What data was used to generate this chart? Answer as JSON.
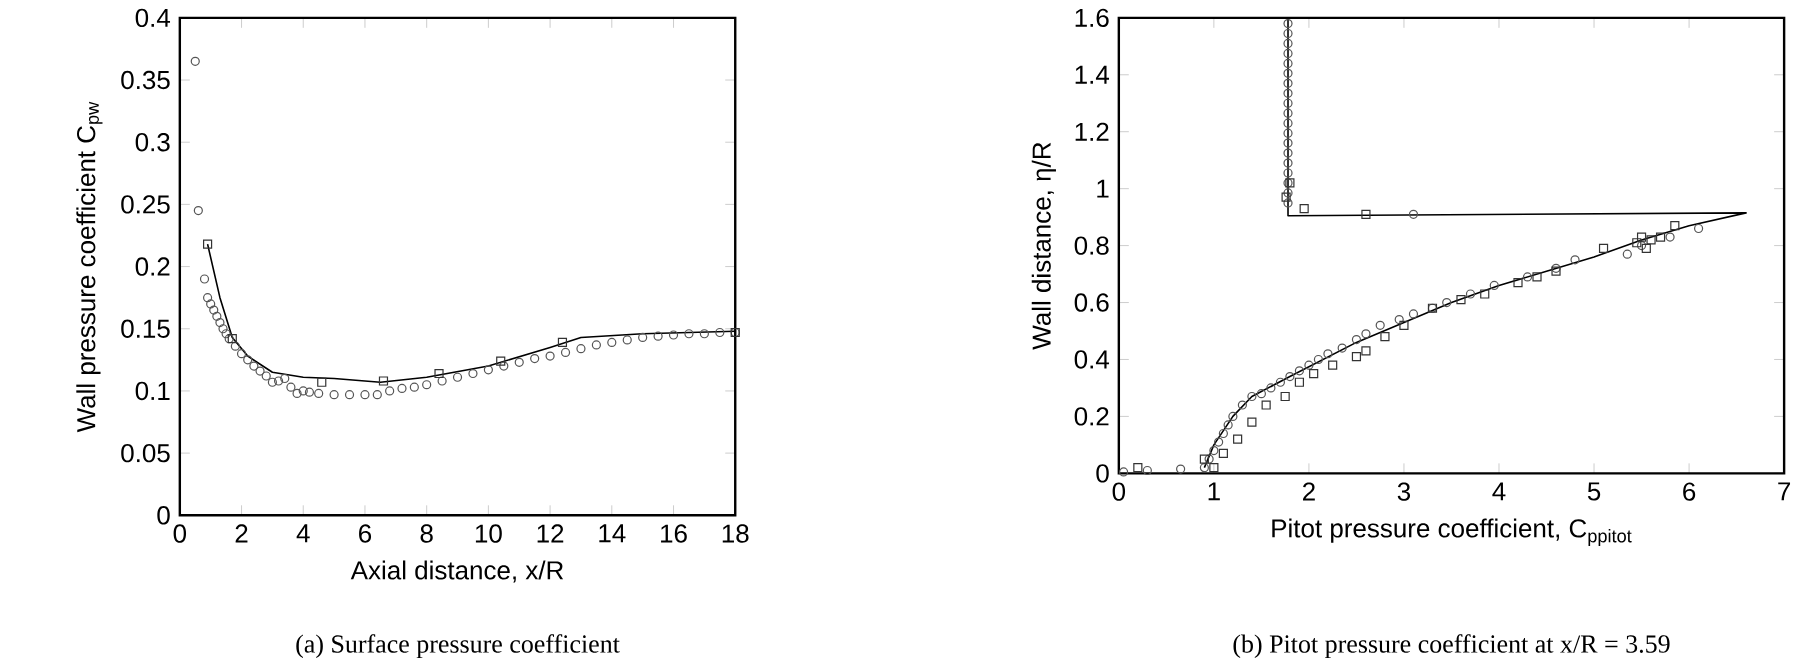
{
  "chart_data": [
    {
      "type": "scatter",
      "xlabel": "Axial distance, x/R",
      "ylabel": "Wall pressure coefficient C$_{pw}$",
      "annotations": [
        "(a) Surface pressure coefficient"
      ],
      "xlim": [
        0,
        18
      ],
      "ylim": [
        0,
        0.4
      ],
      "xticks": [
        0,
        2,
        4,
        6,
        8,
        10,
        12,
        14,
        16,
        18
      ],
      "yticks": [
        0,
        0.05,
        0.1,
        0.15,
        0.2,
        0.25,
        0.3,
        0.35,
        0.4
      ],
      "series": [
        {
          "type": "scatter",
          "marker": "circle",
          "color": "#555555",
          "x": [
            0.5,
            0.6,
            0.8,
            0.9,
            1.0,
            1.1,
            1.2,
            1.3,
            1.4,
            1.5,
            1.6,
            1.8,
            2.0,
            2.2,
            2.4,
            2.6,
            2.8,
            3.0,
            3.2,
            3.4,
            3.6,
            3.8,
            4.0,
            4.2,
            4.5,
            5,
            5.5,
            6,
            6.4,
            6.8,
            7.2,
            7.6,
            8,
            8.5,
            9,
            9.5,
            10,
            10.5,
            11,
            11.5,
            12,
            12.5,
            13,
            13.5,
            14,
            14.5,
            15,
            15.5,
            16,
            16.5,
            17,
            17.5,
            18
          ],
          "values": [
            0.365,
            0.245,
            0.19,
            0.175,
            0.17,
            0.165,
            0.16,
            0.155,
            0.15,
            0.146,
            0.142,
            0.136,
            0.13,
            0.125,
            0.12,
            0.116,
            0.112,
            0.107,
            0.108,
            0.11,
            0.103,
            0.098,
            0.1,
            0.099,
            0.098,
            0.097,
            0.097,
            0.097,
            0.097,
            0.1,
            0.102,
            0.103,
            0.105,
            0.108,
            0.111,
            0.114,
            0.117,
            0.12,
            0.123,
            0.126,
            0.128,
            0.131,
            0.134,
            0.137,
            0.139,
            0.141,
            0.143,
            0.144,
            0.145,
            0.146,
            0.146,
            0.147,
            0.147
          ]
        },
        {
          "type": "scatter",
          "marker": "square",
          "color": "#333333",
          "x": [
            0.9,
            1.7,
            4.6,
            6.6,
            8.4,
            10.4,
            12.4,
            18
          ],
          "values": [
            0.218,
            0.142,
            0.107,
            0.108,
            0.114,
            0.124,
            0.139,
            0.147
          ]
        },
        {
          "type": "line",
          "color": "#000000",
          "line_style": "solid",
          "x": [
            0.9,
            1.3,
            1.7,
            2.2,
            3,
            4,
            5,
            6.5,
            8,
            10,
            12,
            13,
            15,
            18
          ],
          "values": [
            0.218,
            0.175,
            0.143,
            0.128,
            0.115,
            0.111,
            0.11,
            0.107,
            0.111,
            0.12,
            0.135,
            0.143,
            0.146,
            0.148
          ]
        }
      ]
    },
    {
      "type": "scatter",
      "xlabel": "Pitot pressure coefficient, C$_{ppitot}$",
      "ylabel": "Wall distance, η/R",
      "annotations": [
        "(b) Pitot pressure coefficient at x/R = 3.59"
      ],
      "xlim": [
        0,
        7
      ],
      "ylim": [
        0,
        1.6
      ],
      "xticks": [
        0,
        1,
        2,
        3,
        4,
        5,
        6,
        7
      ],
      "yticks": [
        0,
        0.2,
        0.4,
        0.6,
        0.8,
        1,
        1.2,
        1.4,
        1.6
      ],
      "series": [
        {
          "type": "scatter",
          "marker": "circle",
          "color": "#555555",
          "x": [
            0.05,
            0.3,
            0.65,
            0.9,
            0.95,
            1.0,
            1.05,
            1.1,
            1.15,
            1.2,
            1.3,
            1.4,
            1.5,
            1.6,
            1.7,
            1.8,
            1.9,
            2.0,
            2.1,
            2.2,
            2.35,
            2.5,
            2.6,
            2.75,
            2.95,
            3.1,
            3.3,
            3.45,
            3.7,
            3.95,
            4.3,
            4.6,
            4.8,
            5.35,
            5.5,
            5.8,
            6.1,
            3.1,
            1.78,
            1.78,
            1.78,
            1.78,
            1.78,
            1.78,
            1.78,
            1.78,
            1.78,
            1.78,
            1.78,
            1.78,
            1.78,
            1.78,
            1.78,
            1.78,
            1.78,
            1.78,
            1.78
          ],
          "values": [
            0.005,
            0.01,
            0.015,
            0.02,
            0.05,
            0.08,
            0.11,
            0.14,
            0.17,
            0.2,
            0.24,
            0.27,
            0.28,
            0.3,
            0.32,
            0.34,
            0.36,
            0.38,
            0.4,
            0.42,
            0.44,
            0.47,
            0.49,
            0.52,
            0.54,
            0.56,
            0.58,
            0.6,
            0.63,
            0.66,
            0.69,
            0.72,
            0.75,
            0.77,
            0.8,
            0.83,
            0.86,
            0.91,
            0.95,
            0.985,
            1.02,
            1.055,
            1.09,
            1.125,
            1.16,
            1.195,
            1.23,
            1.265,
            1.3,
            1.335,
            1.37,
            1.405,
            1.44,
            1.475,
            1.51,
            1.545,
            1.58
          ]
        },
        {
          "type": "scatter",
          "marker": "square",
          "color": "#333333",
          "x": [
            0.2,
            0.9,
            1.0,
            1.1,
            1.25,
            1.4,
            1.55,
            1.75,
            1.9,
            2.05,
            2.25,
            2.5,
            2.6,
            2.8,
            3.0,
            3.3,
            3.6,
            3.85,
            4.2,
            4.4,
            4.6,
            5.1,
            5.45,
            5.5,
            5.55,
            5.6,
            5.7,
            5.85,
            1.8,
            1.76,
            1.95,
            2.6
          ],
          "values": [
            0.02,
            0.05,
            0.02,
            0.07,
            0.12,
            0.18,
            0.24,
            0.27,
            0.32,
            0.35,
            0.38,
            0.41,
            0.43,
            0.48,
            0.52,
            0.58,
            0.61,
            0.63,
            0.67,
            0.69,
            0.71,
            0.79,
            0.81,
            0.83,
            0.79,
            0.82,
            0.83,
            0.87,
            1.02,
            0.97,
            0.93,
            0.91
          ]
        },
        {
          "type": "line",
          "color": "#000000",
          "line_style": "solid",
          "x": [
            0.9,
            1.0,
            1.2,
            1.4,
            1.8,
            2.5,
            3,
            3.5,
            4,
            4.5,
            5,
            5.5,
            6,
            6.6,
            1.78,
            1.78
          ],
          "values": [
            0.02,
            0.1,
            0.2,
            0.27,
            0.34,
            0.46,
            0.53,
            0.6,
            0.66,
            0.71,
            0.76,
            0.82,
            0.87,
            0.915,
            0.905,
            1.6
          ]
        }
      ]
    }
  ]
}
